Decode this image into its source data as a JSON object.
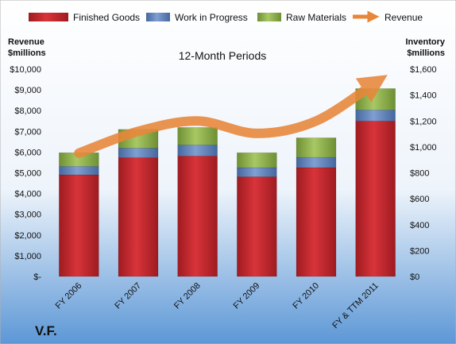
{
  "chart_data": {
    "type": "bar",
    "stacked": true,
    "subtitle": "12-Month Periods",
    "company": "V.F.",
    "categories": [
      "FY 2006",
      "FY 2007",
      "FY 2008",
      "FY 2009",
      "FY 2010",
      "FY & TTM 2011"
    ],
    "series": [
      {
        "name": "Finished Goods",
        "axis": "right",
        "color": "#C0262C",
        "values": [
          785,
          918,
          930,
          770,
          840,
          1200
        ]
      },
      {
        "name": "Work in Progress",
        "axis": "right",
        "color": "#5B7FB9",
        "values": [
          65,
          72,
          85,
          70,
          80,
          85
        ]
      },
      {
        "name": "Raw Materials",
        "axis": "right",
        "color": "#8DB04A",
        "values": [
          105,
          145,
          135,
          115,
          150,
          165
        ]
      }
    ],
    "line_series": {
      "name": "Revenue",
      "axis": "left",
      "color": "#E8863A",
      "values": [
        5950,
        7000,
        7500,
        6900,
        7500,
        9350
      ]
    },
    "left_axis": {
      "label_line1": "Revenue",
      "label_line2": "$millions",
      "range": [
        0,
        10000
      ],
      "ticks": [
        "$-",
        "$1,000",
        "$2,000",
        "$3,000",
        "$4,000",
        "$5,000",
        "$6,000",
        "$7,000",
        "$8,000",
        "$9,000",
        "$10,000"
      ]
    },
    "right_axis": {
      "label_line1": "Inventory",
      "label_line2": "$millions",
      "range": [
        0,
        1600
      ],
      "ticks": [
        "$0",
        "$200",
        "$400",
        "$600",
        "$800",
        "$1,000",
        "$1,200",
        "$1,400",
        "$1,600"
      ]
    },
    "legend": {
      "position": "top",
      "entries": [
        "Finished Goods",
        "Work in Progress",
        "Raw Materials",
        "Revenue"
      ]
    },
    "grid": false
  }
}
